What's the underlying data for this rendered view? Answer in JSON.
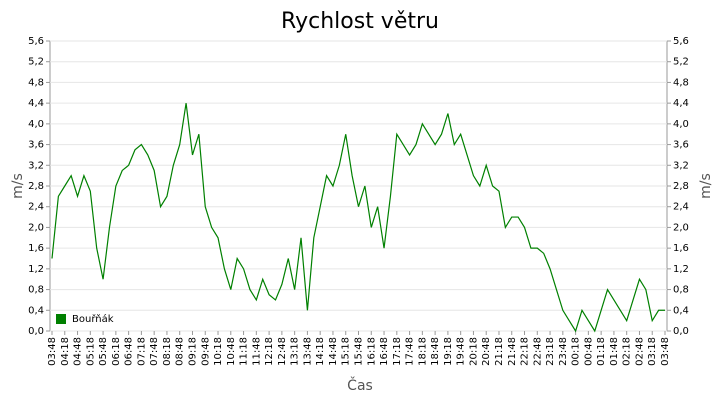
{
  "chart_data": {
    "type": "line",
    "title": "Rychlost větru",
    "x_label": "Čas",
    "y_label": "m/s",
    "categories": [
      "03:48",
      null,
      "04:18",
      null,
      "04:48",
      null,
      "05:18",
      null,
      "05:48",
      null,
      "06:18",
      null,
      "06:48",
      null,
      "07:18",
      null,
      "07:48",
      null,
      "08:18",
      null,
      "08:48",
      null,
      "09:18",
      null,
      "09:48",
      null,
      "10:18",
      null,
      "10:48",
      null,
      "11:18",
      null,
      "11:48",
      null,
      "12:18",
      null,
      "12:48",
      null,
      "13:18",
      null,
      "13:48",
      null,
      "14:18",
      null,
      "14:48",
      null,
      "15:18",
      null,
      "15:48",
      null,
      "16:18",
      null,
      "16:48",
      null,
      "17:18",
      null,
      "17:48",
      null,
      "18:18",
      null,
      "18:48",
      null,
      "19:18",
      null,
      "19:48",
      null,
      "20:18",
      null,
      "20:48",
      null,
      "21:18",
      null,
      "21:48",
      null,
      "22:18",
      null,
      "22:48",
      null,
      "23:18",
      null,
      "23:48",
      null,
      "00:18",
      null,
      "00:48",
      null,
      "01:18",
      null,
      "01:48",
      null,
      "02:18",
      null,
      "02:48",
      null,
      "03:18",
      null,
      "03:48"
    ],
    "series": [
      {
        "name": "Bouřňák",
        "color": "#008000",
        "values": [
          1.4,
          2.6,
          2.8,
          3.0,
          2.6,
          3.0,
          2.7,
          1.6,
          1.0,
          2.0,
          2.8,
          3.1,
          3.2,
          3.5,
          3.6,
          3.4,
          3.1,
          2.4,
          2.6,
          3.2,
          3.6,
          4.4,
          3.4,
          3.8,
          2.4,
          2.0,
          1.8,
          1.2,
          0.8,
          1.4,
          1.2,
          0.8,
          0.6,
          1.0,
          0.7,
          0.6,
          0.9,
          1.4,
          0.8,
          1.8,
          0.4,
          1.8,
          2.4,
          3.0,
          2.8,
          3.2,
          3.8,
          3.0,
          2.4,
          2.8,
          2.0,
          2.4,
          1.6,
          2.6,
          3.8,
          3.6,
          3.4,
          3.6,
          4.0,
          3.8,
          3.6,
          3.8,
          4.2,
          3.6,
          3.8,
          3.4,
          3.0,
          2.8,
          3.2,
          2.8,
          2.7,
          2.0,
          2.2,
          2.2,
          2.0,
          1.6,
          1.6,
          1.5,
          1.2,
          0.8,
          0.4,
          0.2,
          0.0,
          0.4,
          0.2,
          0.0,
          0.4,
          0.8,
          0.6,
          0.4,
          0.2,
          0.6,
          1.0,
          0.8,
          0.2,
          0.4,
          0.4
        ]
      }
    ],
    "ylim": [
      0,
      5.6
    ],
    "yticks": [
      {
        "value": 0,
        "label": "0,0"
      },
      {
        "value": 0.4,
        "label": "0,4"
      },
      {
        "value": 0.8,
        "label": "0,8"
      },
      {
        "value": 1.2,
        "label": "1,2"
      },
      {
        "value": 1.6,
        "label": "1,6"
      },
      {
        "value": 2.0,
        "label": "2,0"
      },
      {
        "value": 2.4,
        "label": "2,4"
      },
      {
        "value": 2.8,
        "label": "2,8"
      },
      {
        "value": 3.2,
        "label": "3,2"
      },
      {
        "value": 3.6,
        "label": "3,6"
      },
      {
        "value": 4.0,
        "label": "4,0"
      },
      {
        "value": 4.4,
        "label": "4,4"
      },
      {
        "value": 4.8,
        "label": "4,8"
      },
      {
        "value": 5.2,
        "label": "5,2"
      },
      {
        "value": 5.6,
        "label": "5,6"
      }
    ],
    "grid": true,
    "legend": "lower left"
  }
}
